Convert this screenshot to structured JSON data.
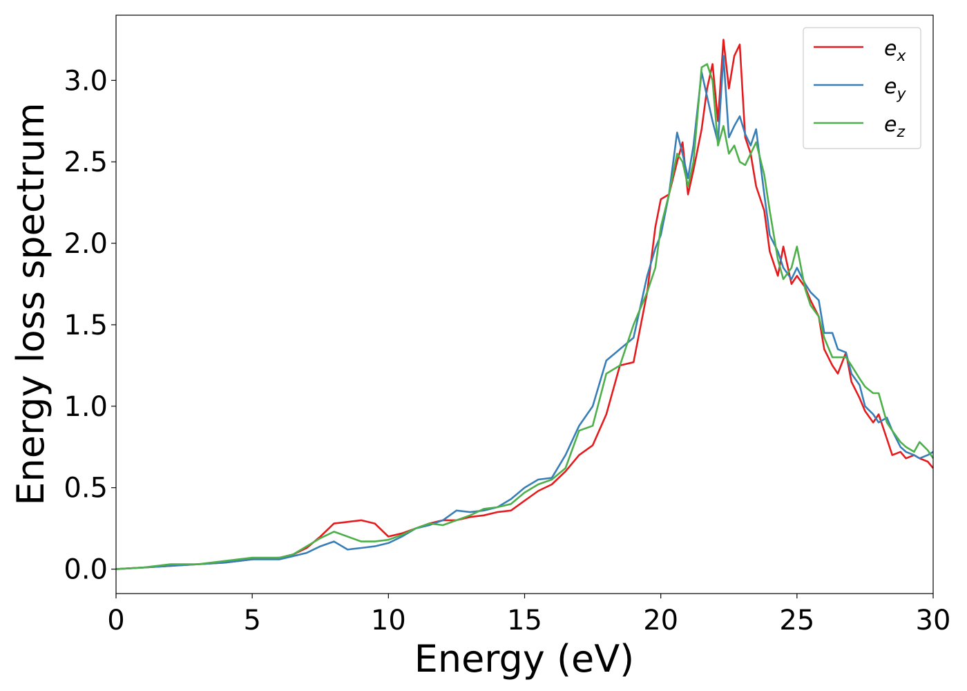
{
  "chart_data": {
    "type": "line",
    "title": "",
    "xlabel": "Energy (eV)",
    "ylabel": "Energy loss spectrum",
    "xlim": [
      0,
      30
    ],
    "ylim": [
      -0.15,
      3.4
    ],
    "xticks": [
      0,
      5,
      10,
      15,
      20,
      25,
      30
    ],
    "xtick_labels": [
      "0",
      "5",
      "10",
      "15",
      "20",
      "25",
      "30"
    ],
    "yticks": [
      0.0,
      0.5,
      1.0,
      1.5,
      2.0,
      2.5,
      3.0
    ],
    "ytick_labels": [
      "0.0",
      "0.5",
      "1.0",
      "1.5",
      "2.0",
      "2.5",
      "3.0"
    ],
    "grid": false,
    "legend_position": "top-right",
    "series": [
      {
        "name": "e_x",
        "legend_base": "e",
        "legend_sub": "x",
        "color": "#e41a1c",
        "x": [
          0,
          1,
          2,
          3,
          4,
          5,
          6,
          6.5,
          7,
          7.5,
          8,
          8.5,
          9,
          9.5,
          10,
          10.5,
          11,
          11.5,
          12,
          12.5,
          13,
          13.5,
          14,
          14.5,
          15,
          15.5,
          16,
          16.5,
          17,
          17.5,
          18,
          18.5,
          19,
          19.5,
          19.8,
          20,
          20.3,
          20.6,
          20.8,
          21,
          21.2,
          21.5,
          21.7,
          21.9,
          22.1,
          22.3,
          22.5,
          22.7,
          22.9,
          23.1,
          23.3,
          23.5,
          23.8,
          24,
          24.3,
          24.5,
          24.8,
          25,
          25.3,
          25.5,
          25.8,
          26,
          26.3,
          26.5,
          26.8,
          27,
          27.3,
          27.5,
          27.8,
          28,
          28.3,
          28.5,
          28.8,
          29,
          29.3,
          29.5,
          29.8,
          30
        ],
        "y": [
          0.0,
          0.01,
          0.02,
          0.03,
          0.04,
          0.06,
          0.07,
          0.09,
          0.13,
          0.2,
          0.28,
          0.29,
          0.3,
          0.28,
          0.2,
          0.22,
          0.25,
          0.28,
          0.3,
          0.3,
          0.32,
          0.33,
          0.35,
          0.36,
          0.42,
          0.48,
          0.52,
          0.6,
          0.7,
          0.76,
          0.95,
          1.25,
          1.27,
          1.7,
          2.1,
          2.27,
          2.3,
          2.5,
          2.62,
          2.3,
          2.45,
          2.7,
          2.95,
          3.1,
          2.75,
          3.25,
          2.95,
          3.15,
          3.22,
          2.65,
          2.55,
          2.35,
          2.2,
          1.95,
          1.8,
          1.98,
          1.75,
          1.8,
          1.73,
          1.65,
          1.55,
          1.35,
          1.25,
          1.2,
          1.33,
          1.15,
          1.05,
          0.97,
          0.9,
          0.95,
          0.8,
          0.7,
          0.72,
          0.68,
          0.7,
          0.68,
          0.66,
          0.62
        ]
      },
      {
        "name": "e_y",
        "legend_base": "e",
        "legend_sub": "y",
        "color": "#377eb8",
        "x": [
          0,
          1,
          2,
          3,
          4,
          5,
          6,
          6.5,
          7,
          7.5,
          8,
          8.5,
          9,
          9.5,
          10,
          10.5,
          11,
          11.5,
          12,
          12.5,
          13,
          13.5,
          14,
          14.5,
          15,
          15.5,
          16,
          16.5,
          17,
          17.5,
          18,
          18.5,
          19,
          19.5,
          19.8,
          20,
          20.3,
          20.6,
          20.8,
          21,
          21.2,
          21.5,
          21.7,
          21.9,
          22.1,
          22.3,
          22.5,
          22.7,
          22.9,
          23.1,
          23.3,
          23.5,
          23.8,
          24,
          24.3,
          24.5,
          24.8,
          25,
          25.3,
          25.5,
          25.8,
          26,
          26.3,
          26.5,
          26.8,
          27,
          27.3,
          27.5,
          27.8,
          28,
          28.3,
          28.5,
          28.8,
          29,
          29.3,
          29.5,
          29.8,
          30
        ],
        "y": [
          0.0,
          0.01,
          0.02,
          0.03,
          0.04,
          0.06,
          0.06,
          0.08,
          0.1,
          0.14,
          0.17,
          0.12,
          0.13,
          0.14,
          0.16,
          0.2,
          0.25,
          0.27,
          0.3,
          0.36,
          0.35,
          0.36,
          0.38,
          0.43,
          0.5,
          0.55,
          0.56,
          0.7,
          0.88,
          1.0,
          1.28,
          1.35,
          1.42,
          1.8,
          1.97,
          2.05,
          2.3,
          2.68,
          2.55,
          2.4,
          2.6,
          3.05,
          2.9,
          2.75,
          2.62,
          3.15,
          2.65,
          2.72,
          2.78,
          2.67,
          2.6,
          2.7,
          2.3,
          2.05,
          1.95,
          1.85,
          1.78,
          1.85,
          1.75,
          1.7,
          1.65,
          1.45,
          1.45,
          1.35,
          1.33,
          1.2,
          1.13,
          1.0,
          0.95,
          0.9,
          0.93,
          0.85,
          0.75,
          0.72,
          0.7,
          0.68,
          0.7,
          0.72
        ]
      },
      {
        "name": "e_z",
        "legend_base": "e",
        "legend_sub": "z",
        "color": "#4daf4a",
        "x": [
          0,
          1,
          2,
          3,
          4,
          5,
          6,
          6.5,
          7,
          7.5,
          8,
          8.5,
          9,
          9.5,
          10,
          10.5,
          11,
          11.5,
          12,
          12.5,
          13,
          13.5,
          14,
          14.5,
          15,
          15.5,
          16,
          16.5,
          17,
          17.5,
          18,
          18.5,
          19,
          19.5,
          19.8,
          20,
          20.3,
          20.6,
          20.8,
          21,
          21.2,
          21.5,
          21.7,
          21.9,
          22.1,
          22.3,
          22.5,
          22.7,
          22.9,
          23.1,
          23.3,
          23.5,
          23.8,
          24,
          24.3,
          24.5,
          24.8,
          25,
          25.3,
          25.5,
          25.8,
          26,
          26.3,
          26.5,
          26.8,
          27,
          27.3,
          27.5,
          27.8,
          28,
          28.3,
          28.5,
          28.8,
          29,
          29.3,
          29.5,
          29.8,
          30
        ],
        "y": [
          0.0,
          0.01,
          0.03,
          0.03,
          0.05,
          0.07,
          0.07,
          0.09,
          0.14,
          0.19,
          0.23,
          0.2,
          0.17,
          0.17,
          0.18,
          0.21,
          0.25,
          0.28,
          0.27,
          0.3,
          0.33,
          0.37,
          0.38,
          0.4,
          0.47,
          0.52,
          0.55,
          0.62,
          0.85,
          0.88,
          1.2,
          1.25,
          1.5,
          1.7,
          1.85,
          2.1,
          2.3,
          2.55,
          2.5,
          2.35,
          2.5,
          3.08,
          3.1,
          3.0,
          2.6,
          2.72,
          2.55,
          2.6,
          2.5,
          2.48,
          2.55,
          2.62,
          2.42,
          2.2,
          1.9,
          1.78,
          1.85,
          1.98,
          1.72,
          1.62,
          1.55,
          1.42,
          1.3,
          1.3,
          1.3,
          1.25,
          1.17,
          1.12,
          1.08,
          1.08,
          0.9,
          0.85,
          0.78,
          0.75,
          0.72,
          0.78,
          0.73,
          0.68
        ]
      }
    ]
  }
}
